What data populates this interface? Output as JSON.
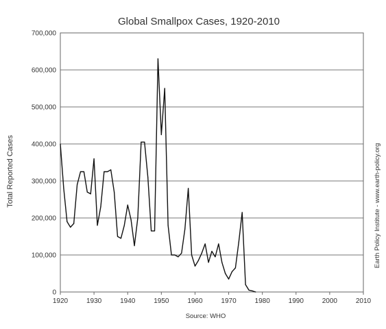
{
  "chart_data": {
    "type": "line",
    "title": "Global Smallpox Cases, 1920-2010",
    "ylabel": "Total Reported Cases",
    "source": "Source: WHO",
    "credit": "Earth Policy Institute - www.earth-policy.org",
    "xlim": [
      1920,
      2010
    ],
    "ylim": [
      0,
      700000
    ],
    "xticks": [
      "1920",
      "1930",
      "1940",
      "1950",
      "1960",
      "1970",
      "1980",
      "1990",
      "2000",
      "2010"
    ],
    "yticks": [
      "0",
      "100,000",
      "200,000",
      "300,000",
      "400,000",
      "500,000",
      "600,000",
      "700,000"
    ],
    "grid": "horizontal",
    "line_color": "#111111",
    "series": [
      {
        "x": [
          1920,
          1921,
          1922,
          1923,
          1924,
          1925,
          1926,
          1927,
          1928,
          1929,
          1930,
          1931,
          1932,
          1933,
          1934,
          1935,
          1936,
          1937,
          1938,
          1939,
          1940,
          1941,
          1942,
          1943,
          1944,
          1945,
          1946,
          1947,
          1948,
          1949,
          1950,
          1951,
          1952,
          1953,
          1954,
          1955,
          1956,
          1957,
          1958,
          1959,
          1960,
          1961,
          1962,
          1963,
          1964,
          1965,
          1966,
          1967,
          1968,
          1969,
          1970,
          1971,
          1972,
          1973,
          1974,
          1975,
          1976,
          1977,
          1978
        ],
        "y": [
          400000,
          280000,
          190000,
          175000,
          185000,
          290000,
          325000,
          325000,
          270000,
          265000,
          360000,
          180000,
          230000,
          325000,
          325000,
          330000,
          270000,
          150000,
          145000,
          180000,
          235000,
          195000,
          125000,
          200000,
          405000,
          405000,
          310000,
          165000,
          165000,
          630000,
          425000,
          550000,
          180000,
          100000,
          100000,
          95000,
          105000,
          170000,
          280000,
          100000,
          70000,
          85000,
          105000,
          130000,
          80000,
          110000,
          95000,
          130000,
          80000,
          50000,
          35000,
          55000,
          65000,
          135000,
          215000,
          20000,
          5000,
          3000,
          0
        ]
      }
    ]
  }
}
